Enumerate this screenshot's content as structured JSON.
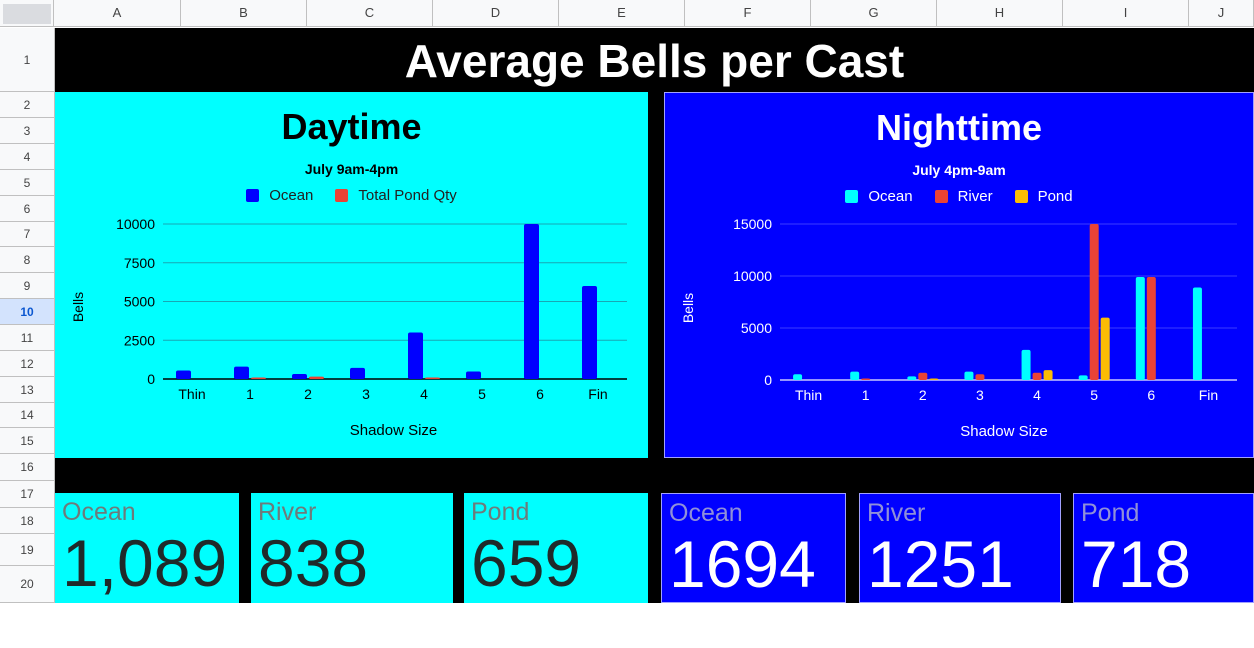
{
  "sheet": {
    "columns": [
      "A",
      "B",
      "C",
      "D",
      "E",
      "F",
      "G",
      "H",
      "I",
      "J"
    ],
    "rows": [
      "1",
      "2",
      "3",
      "4",
      "5",
      "6",
      "7",
      "8",
      "9",
      "10",
      "11",
      "12",
      "13",
      "14",
      "15",
      "16",
      "17",
      "18",
      "19",
      "20"
    ],
    "selected_row": "10"
  },
  "title": "Average Bells per Cast",
  "chart_data": [
    {
      "type": "bar",
      "title": "Daytime",
      "subtitle": "July 9am-4pm",
      "xlabel": "Shadow Size",
      "ylabel": "Bells",
      "categories": [
        "Thin",
        "1",
        "2",
        "3",
        "4",
        "5",
        "6",
        "Fin"
      ],
      "series": [
        {
          "name": "Ocean",
          "values": [
            550,
            800,
            320,
            720,
            3000,
            480,
            10000,
            6000
          ]
        },
        {
          "name": "Total Pond Qty",
          "values": [
            0,
            50,
            150,
            0,
            60,
            0,
            0,
            0
          ]
        }
      ],
      "ylim": [
        0,
        10000
      ],
      "yticks": [
        "0",
        "2500",
        "5000",
        "7500",
        "10000"
      ],
      "grid": true,
      "legend": "top"
    },
    {
      "type": "bar",
      "title": "Nighttime",
      "subtitle": "July 4pm-9am",
      "xlabel": "Shadow Size",
      "ylabel": "Bells",
      "categories": [
        "Thin",
        "1",
        "2",
        "3",
        "4",
        "5",
        "6",
        "Fin"
      ],
      "series": [
        {
          "name": "Ocean",
          "values": [
            550,
            800,
            350,
            800,
            2900,
            450,
            9900,
            8900
          ]
        },
        {
          "name": "River",
          "values": [
            0,
            80,
            700,
            550,
            700,
            15000,
            9900,
            0
          ]
        },
        {
          "name": "Pond",
          "values": [
            0,
            0,
            100,
            0,
            950,
            6000,
            0,
            0
          ]
        }
      ],
      "ylim": [
        0,
        15000
      ],
      "yticks": [
        "0",
        "5000",
        "10000",
        "15000"
      ],
      "grid": true,
      "legend": "top"
    }
  ],
  "colors": {
    "day_bg": "#00ffff",
    "night_bg": "#0000ff",
    "day_ocean": "#0000ff",
    "day_pond": "#ea4335",
    "night_ocean": "#00ffff",
    "night_river": "#ea4335",
    "night_pond": "#fbbc04"
  },
  "cards": [
    {
      "label": "Ocean",
      "value": "1,089"
    },
    {
      "label": "River",
      "value": "838"
    },
    {
      "label": "Pond",
      "value": "659"
    },
    {
      "label": "Ocean",
      "value": "1694"
    },
    {
      "label": "River",
      "value": "1251"
    },
    {
      "label": "Pond",
      "value": "718"
    }
  ]
}
